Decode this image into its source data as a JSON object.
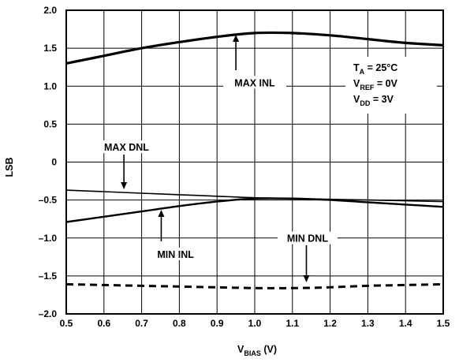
{
  "chart_data": {
    "type": "line",
    "xlabel_main": "V",
    "xlabel_sub": "BIAS",
    "xlabel_unit": " (V)",
    "ylabel": "LSB",
    "xlim": [
      0.5,
      1.5
    ],
    "ylim": [
      -2.0,
      2.0
    ],
    "x_ticks": [
      "0.5",
      "0.6",
      "0.7",
      "0.8",
      "0.9",
      "1.0",
      "1.1",
      "1.2",
      "1.3",
      "1.4",
      "1.5"
    ],
    "y_ticks": [
      "2.0",
      "1.5",
      "1.0",
      "0.5",
      "0",
      "–0.5",
      "–1.0",
      "–1.5",
      "–2.0"
    ],
    "grid": true,
    "x": [
      0.5,
      0.6,
      0.7,
      0.8,
      0.9,
      1.0,
      1.1,
      1.2,
      1.3,
      1.4,
      1.5
    ],
    "series": [
      {
        "name": "MAX INL",
        "values": [
          1.3,
          1.4,
          1.5,
          1.58,
          1.65,
          1.7,
          1.7,
          1.67,
          1.62,
          1.57,
          1.54
        ],
        "style": "bold"
      },
      {
        "name": "MAX DNL",
        "values": [
          -0.37,
          -0.39,
          -0.41,
          -0.43,
          -0.45,
          -0.47,
          -0.48,
          -0.49,
          -0.5,
          -0.51,
          -0.52
        ],
        "style": "thin"
      },
      {
        "name": "MIN INL",
        "values": [
          -0.79,
          -0.72,
          -0.65,
          -0.58,
          -0.52,
          -0.48,
          -0.48,
          -0.5,
          -0.53,
          -0.56,
          -0.59
        ],
        "style": "medium"
      },
      {
        "name": "MIN DNL",
        "values": [
          -1.61,
          -1.62,
          -1.63,
          -1.64,
          -1.65,
          -1.66,
          -1.66,
          -1.65,
          -1.63,
          -1.62,
          -1.61
        ],
        "style": "dashed"
      }
    ],
    "annotations": [
      {
        "text": "MAX INL",
        "x": 1.0,
        "y": 1.02
      },
      {
        "text": "MAX DNL",
        "x": 0.66,
        "y": 0.17
      },
      {
        "text": "MIN INL",
        "x": 0.79,
        "y": -1.24
      },
      {
        "text": "MIN DNL",
        "x": 1.14,
        "y": -1.03
      }
    ],
    "conditions": [
      {
        "main": "T",
        "sub": "A",
        "rest": " = 25°C"
      },
      {
        "main": "V",
        "sub": "REF",
        "rest": " = 0V"
      },
      {
        "main": "V",
        "sub": "DD",
        "rest": " = 3V"
      }
    ],
    "colors": {
      "line": "#000000",
      "grid": "#000000",
      "background": "#ffffff"
    }
  }
}
